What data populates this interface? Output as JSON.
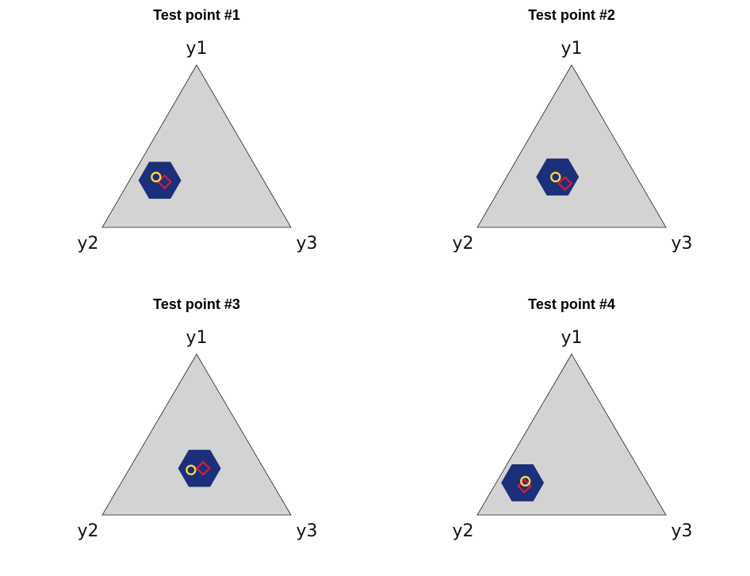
{
  "chart_data": {
    "type": "scatter",
    "subtype": "ternary",
    "layout": "2x2",
    "colors": {
      "triangle_fill": "#d3d3d3",
      "triangle_stroke": "#222222",
      "hexagon_fill": "#1c2f7a",
      "circle_marker": "#f5d742",
      "diamond_marker": "#d81b3c"
    },
    "panels": [
      {
        "title": "Test point #1",
        "vertices": [
          "y1",
          "y2",
          "y3"
        ],
        "hexagon_center": {
          "y1": 0.29,
          "y2": 0.55,
          "y3": 0.16
        },
        "circle_point": {
          "y1": 0.31,
          "y2": 0.56,
          "y3": 0.13
        },
        "diamond_point": {
          "y1": 0.28,
          "y2": 0.53,
          "y3": 0.19
        }
      },
      {
        "title": "Test point #2",
        "vertices": [
          "y1",
          "y2",
          "y3"
        ],
        "hexagon_center": {
          "y1": 0.31,
          "y2": 0.42,
          "y3": 0.27
        },
        "circle_point": {
          "y1": 0.31,
          "y2": 0.43,
          "y3": 0.26
        },
        "diamond_point": {
          "y1": 0.27,
          "y2": 0.4,
          "y3": 0.33
        }
      },
      {
        "title": "Test point #3",
        "vertices": [
          "y1",
          "y2",
          "y3"
        ],
        "hexagon_center": {
          "y1": 0.29,
          "y2": 0.34,
          "y3": 0.37
        },
        "circle_point": {
          "y1": 0.28,
          "y2": 0.39,
          "y3": 0.33
        },
        "diamond_point": {
          "y1": 0.29,
          "y2": 0.32,
          "y3": 0.39
        }
      },
      {
        "title": "Test point #4",
        "vertices": [
          "y1",
          "y2",
          "y3"
        ],
        "hexagon_center": {
          "y1": 0.2,
          "y2": 0.66,
          "y3": 0.14
        },
        "circle_point": {
          "y1": 0.21,
          "y2": 0.64,
          "y3": 0.15
        },
        "diamond_point": {
          "y1": 0.18,
          "y2": 0.66,
          "y3": 0.16
        }
      }
    ]
  }
}
